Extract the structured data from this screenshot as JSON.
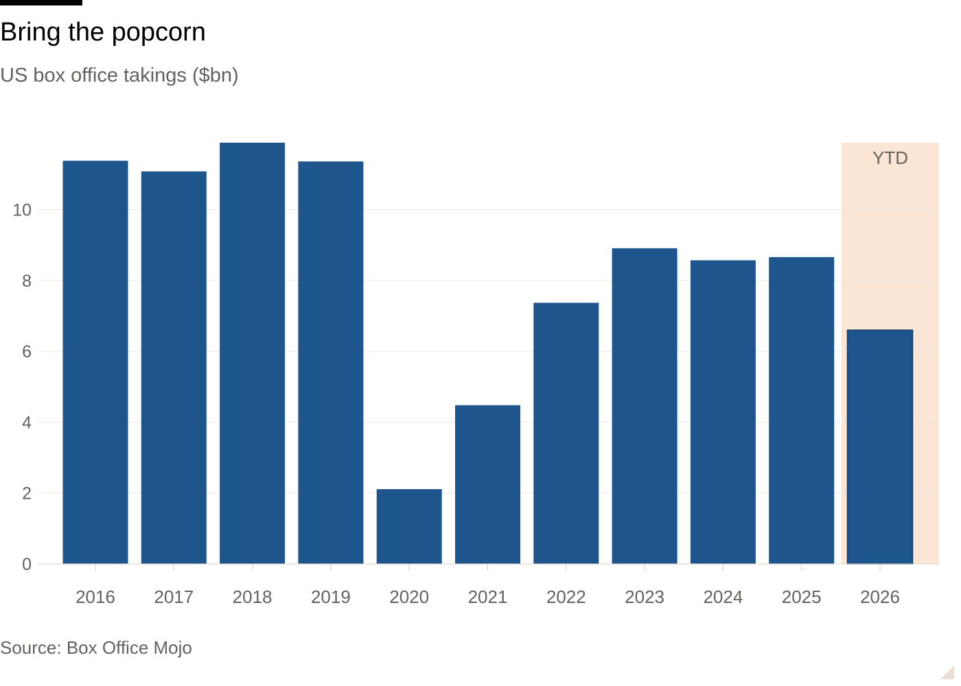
{
  "header": {
    "title": "Bring the popcorn",
    "subtitle": "US box office takings ($bn)"
  },
  "footer": {
    "source": "Source: Box Office Mojo"
  },
  "colors": {
    "bar": "#1e558c",
    "bar_ytd": "#1e558c",
    "ytd_band": "#fbe6d6",
    "grid": "#ede5de",
    "axis_text": "#66605c",
    "top_bar": "#000000"
  },
  "chart_data": {
    "type": "bar",
    "title": "Bring the popcorn",
    "subtitle": "US box office takings ($bn)",
    "xlabel": "",
    "ylabel": "",
    "categories": [
      "2016",
      "2017",
      "2018",
      "2019",
      "2020",
      "2021",
      "2022",
      "2023",
      "2024",
      "2025",
      "2026"
    ],
    "values": [
      11.38,
      11.08,
      11.89,
      11.36,
      2.11,
      4.48,
      7.37,
      8.91,
      8.57,
      8.66,
      6.6
    ],
    "ylim": [
      0,
      11.89
    ],
    "yticks": [
      0,
      2,
      4,
      6,
      8,
      10
    ],
    "grid": true,
    "legend": "none",
    "highlight": {
      "category": "2026",
      "label": "YTD"
    }
  }
}
